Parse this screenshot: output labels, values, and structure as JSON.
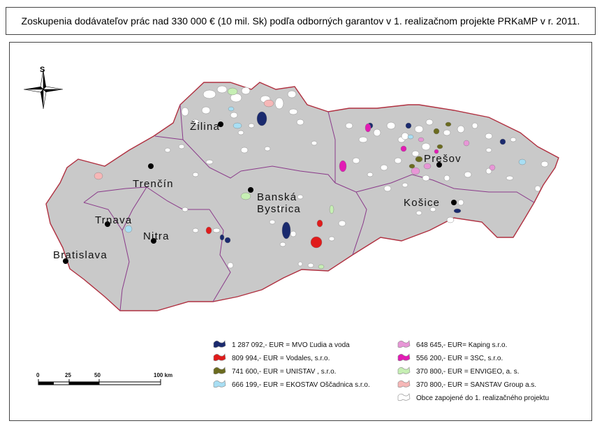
{
  "title": "Zoskupenia dodávateľov prác nad 330 000 € (10 mil. Sk) podľa odborných garantov v 1. realizačnom projekte PRKaMP v r. 2011.",
  "north_arrow": {
    "letter": "S",
    "icon": "compass-rose-icon"
  },
  "cities": [
    {
      "id": "zilina",
      "lines": [
        "Žilina"
      ]
    },
    {
      "id": "trencin",
      "lines": [
        "Trenčín"
      ]
    },
    {
      "id": "banska-bystrica",
      "lines": [
        "Banská",
        "Bystrica"
      ]
    },
    {
      "id": "presov",
      "lines": [
        "Prešov"
      ]
    },
    {
      "id": "kosice",
      "lines": [
        "Košice"
      ]
    },
    {
      "id": "trnava",
      "lines": [
        "Trnava"
      ]
    },
    {
      "id": "nitra",
      "lines": [
        "Nitra"
      ]
    },
    {
      "id": "bratislava",
      "lines": [
        "Bratislava"
      ]
    }
  ],
  "legend": {
    "left": [
      {
        "color": "#1a2a6e",
        "label": "1 287 092,- EUR = MVO Ľudia a voda"
      },
      {
        "color": "#e01b1b",
        "label": "809 994,- EUR = Vodales, s.r.o."
      },
      {
        "color": "#6b6b1f",
        "label": "741 600,- EUR = UNISTAV , s.r.o."
      },
      {
        "color": "#a8def3",
        "label": "666 199,- EUR = EKOSTAV Oščadnica s.r.o."
      }
    ],
    "right": [
      {
        "color": "#e796d6",
        "label": "648 645,- EUR= Kaping s.r.o."
      },
      {
        "color": "#e21bb4",
        "label": "556 200,- EUR = 3SC, s.r.o."
      },
      {
        "color": "#c6efb4",
        "label": "370 800,- EUR = ENVIGEO, a. s."
      },
      {
        "color": "#f6b7b7",
        "label": "370 800,- EUR = SANSTAV Group a.s."
      },
      {
        "color": "#ffffff",
        "label": "Obce zapojené do 1. realizačného projektu"
      }
    ]
  },
  "scale_bar": {
    "ticks": [
      "0",
      "25",
      "50",
      "100 km"
    ]
  },
  "colors": {
    "land": "#c9c9c9",
    "region_border": "#8a3a8a",
    "state_border": "#b03040"
  }
}
